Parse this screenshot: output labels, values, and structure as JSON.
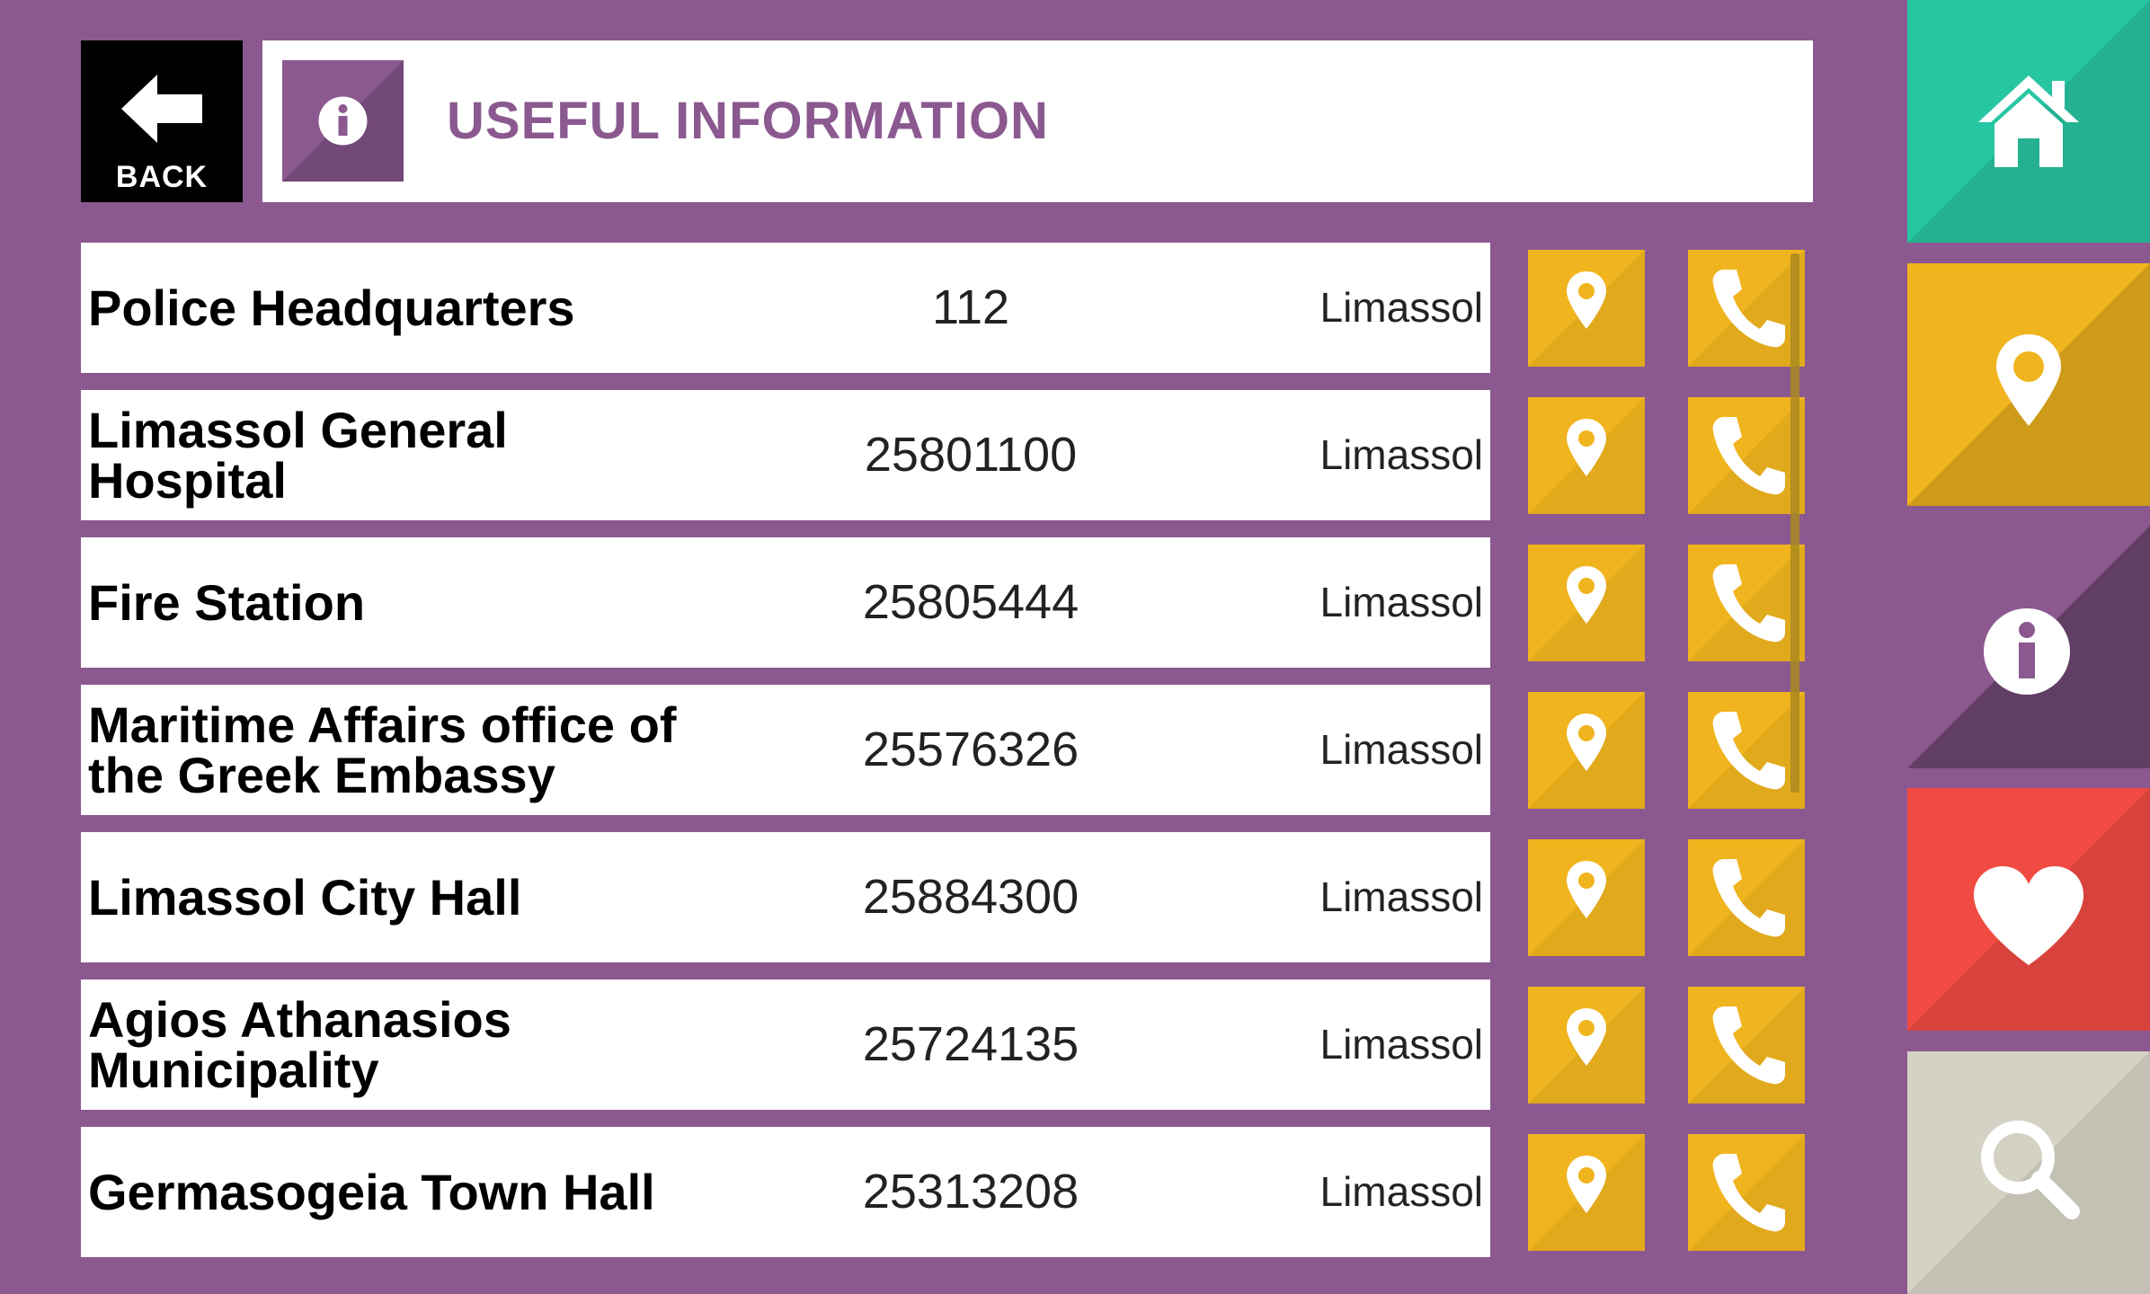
{
  "header": {
    "back_label": "BACK",
    "title": "USEFUL INFORMATION"
  },
  "rows": [
    {
      "name": "Police Headquarters",
      "phone": "112",
      "city": "Limassol"
    },
    {
      "name": "Limassol General Hospital",
      "phone": "25801100",
      "city": "Limassol"
    },
    {
      "name": "Fire Station",
      "phone": "25805444",
      "city": "Limassol"
    },
    {
      "name": "Maritime Affairs office of the Greek Embassy",
      "phone": "25576326",
      "city": "Limassol"
    },
    {
      "name": "Limassol City Hall",
      "phone": "25884300",
      "city": "Limassol"
    },
    {
      "name": "Agios Athanasios Municipality",
      "phone": "25724135",
      "city": "Limassol"
    },
    {
      "name": "Germasogeia Town Hall",
      "phone": "25313208",
      "city": "Limassol"
    }
  ],
  "sidebar": {
    "items": [
      {
        "icon": "home-icon",
        "color": "#27c6a2"
      },
      {
        "icon": "map-pin-icon",
        "color": "#f0b41e"
      },
      {
        "icon": "info-icon",
        "color": "#8b5990"
      },
      {
        "icon": "heart-icon",
        "color": "#f04b43"
      },
      {
        "icon": "search-icon",
        "color": "#d4d2c4"
      }
    ]
  },
  "colors": {
    "background": "#8b5990",
    "accent": "#f0b41e"
  }
}
